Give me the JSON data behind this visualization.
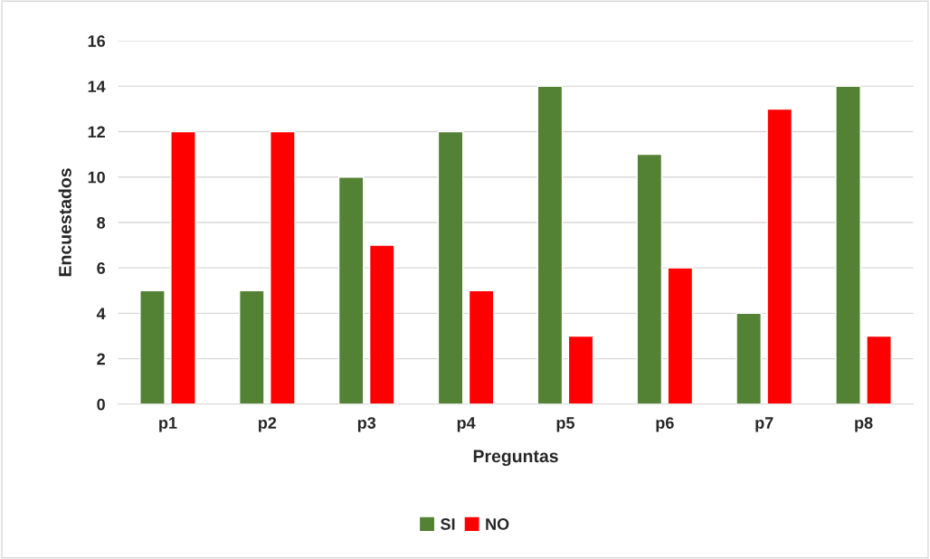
{
  "chart_data": {
    "type": "bar",
    "xlabel": "Preguntas",
    "ylabel": "Encuestados",
    "categories": [
      "p1",
      "p2",
      "p3",
      "p4",
      "p5",
      "p6",
      "p7",
      "p8"
    ],
    "series": [
      {
        "name": "SI",
        "color": "#548235",
        "values": [
          5,
          5,
          10,
          12,
          14,
          11,
          4,
          14
        ]
      },
      {
        "name": "NO",
        "color": "#ff0000",
        "values": [
          12,
          12,
          7,
          5,
          3,
          6,
          13,
          3
        ]
      }
    ],
    "ylim": [
      0,
      16
    ],
    "yticks": [
      0,
      2,
      4,
      6,
      8,
      10,
      12,
      14,
      16
    ],
    "grid": "y",
    "legend": "bottom"
  }
}
